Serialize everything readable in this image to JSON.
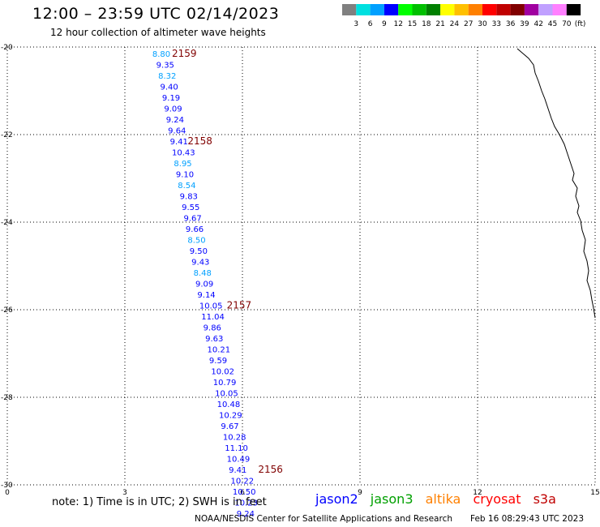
{
  "header": {
    "title": "12:00 – 23:59 UTC 02/14/2023",
    "subtitle": "12 hour collection of altimeter wave heights"
  },
  "legend": {
    "colors": [
      "#808080",
      "#00e0e0",
      "#00a0ff",
      "#0000ff",
      "#00ff00",
      "#00c000",
      "#008000",
      "#ffff00",
      "#ffc000",
      "#ff8000",
      "#ff0000",
      "#c00000",
      "#800000",
      "#a000a0",
      "#c0a0ff",
      "#ff80ff",
      "#000000"
    ],
    "labels": [
      "3",
      "6",
      "9",
      "12",
      "15",
      "18",
      "21",
      "24",
      "27",
      "30",
      "33",
      "36",
      "39",
      "42",
      "45",
      "70"
    ],
    "unit": "(ft)"
  },
  "footer": {
    "note": "note: 1) Time is in UTC; 2) SWH is in feet",
    "satellites": [
      {
        "name": "jason2",
        "color": "#0000ff"
      },
      {
        "name": "jason3",
        "color": "#00a000"
      },
      {
        "name": "altika",
        "color": "#ff8000"
      },
      {
        "name": "cryosat",
        "color": "#ff0000"
      },
      {
        "name": "s3a",
        "color": "#c00000"
      }
    ],
    "credit": "NOAA/NESDIS Center for Satellite Applications and Research",
    "date": "Feb 16 08:29:43 UTC 2023"
  },
  "chart_data": {
    "type": "scatter",
    "xlim": [
      0,
      15
    ],
    "ylim": [
      -30,
      -20
    ],
    "x_ticks": [
      "0",
      "3",
      "6",
      "9",
      "12",
      "15"
    ],
    "y_ticks": [
      "-20",
      "-22",
      "-24",
      "-26",
      "-28",
      "-30"
    ],
    "grid": true,
    "points": [
      {
        "x": 3.7,
        "y": -20.15,
        "label": "8.80",
        "color": "#00a0ff"
      },
      {
        "x": 3.8,
        "y": -20.4,
        "label": "9.35",
        "color": "#0000ff"
      },
      {
        "x": 3.85,
        "y": -20.65,
        "label": "8.32",
        "color": "#00a0ff"
      },
      {
        "x": 3.9,
        "y": -20.9,
        "label": "9.40",
        "color": "#0000ff"
      },
      {
        "x": 3.95,
        "y": -21.15,
        "label": "9.19",
        "color": "#0000ff"
      },
      {
        "x": 4.0,
        "y": -21.4,
        "label": "9.09",
        "color": "#0000ff"
      },
      {
        "x": 4.05,
        "y": -21.65,
        "label": "9.24",
        "color": "#0000ff"
      },
      {
        "x": 4.1,
        "y": -21.9,
        "label": "9.64",
        "color": "#0000ff"
      },
      {
        "x": 4.15,
        "y": -22.15,
        "label": "9.41",
        "color": "#0000ff"
      },
      {
        "x": 4.2,
        "y": -22.4,
        "label": "10.43",
        "color": "#0000ff"
      },
      {
        "x": 4.25,
        "y": -22.65,
        "label": "8.95",
        "color": "#00a0ff"
      },
      {
        "x": 4.3,
        "y": -22.9,
        "label": "9.10",
        "color": "#0000ff"
      },
      {
        "x": 4.35,
        "y": -23.15,
        "label": "8.54",
        "color": "#00a0ff"
      },
      {
        "x": 4.4,
        "y": -23.4,
        "label": "9.83",
        "color": "#0000ff"
      },
      {
        "x": 4.45,
        "y": -23.65,
        "label": "9.55",
        "color": "#0000ff"
      },
      {
        "x": 4.5,
        "y": -23.9,
        "label": "9.67",
        "color": "#0000ff"
      },
      {
        "x": 4.55,
        "y": -24.15,
        "label": "9.66",
        "color": "#0000ff"
      },
      {
        "x": 4.6,
        "y": -24.4,
        "label": "8.50",
        "color": "#00a0ff"
      },
      {
        "x": 4.65,
        "y": -24.65,
        "label": "9.50",
        "color": "#0000ff"
      },
      {
        "x": 4.7,
        "y": -24.9,
        "label": "9.43",
        "color": "#0000ff"
      },
      {
        "x": 4.75,
        "y": -25.15,
        "label": "8.48",
        "color": "#00a0ff"
      },
      {
        "x": 4.8,
        "y": -25.4,
        "label": "9.09",
        "color": "#0000ff"
      },
      {
        "x": 4.85,
        "y": -25.65,
        "label": "9.14",
        "color": "#0000ff"
      },
      {
        "x": 4.9,
        "y": -25.9,
        "label": "10.05",
        "color": "#0000ff"
      },
      {
        "x": 4.95,
        "y": -26.15,
        "label": "11.04",
        "color": "#0000ff"
      },
      {
        "x": 5.0,
        "y": -26.4,
        "label": "9.86",
        "color": "#0000ff"
      },
      {
        "x": 5.05,
        "y": -26.65,
        "label": "9.63",
        "color": "#0000ff"
      },
      {
        "x": 5.1,
        "y": -26.9,
        "label": "10.21",
        "color": "#0000ff"
      },
      {
        "x": 5.15,
        "y": -27.15,
        "label": "9.59",
        "color": "#0000ff"
      },
      {
        "x": 5.2,
        "y": -27.4,
        "label": "10.02",
        "color": "#0000ff"
      },
      {
        "x": 5.25,
        "y": -27.65,
        "label": "10.79",
        "color": "#0000ff"
      },
      {
        "x": 5.3,
        "y": -27.9,
        "label": "10.05",
        "color": "#0000ff"
      },
      {
        "x": 5.35,
        "y": -28.15,
        "label": "10.48",
        "color": "#0000ff"
      },
      {
        "x": 5.4,
        "y": -28.4,
        "label": "10.29",
        "color": "#0000ff"
      },
      {
        "x": 5.45,
        "y": -28.65,
        "label": "9.67",
        "color": "#0000ff"
      },
      {
        "x": 5.5,
        "y": -28.9,
        "label": "10.28",
        "color": "#0000ff"
      },
      {
        "x": 5.55,
        "y": -29.15,
        "label": "11.10",
        "color": "#0000ff"
      },
      {
        "x": 5.6,
        "y": -29.4,
        "label": "10.49",
        "color": "#0000ff"
      },
      {
        "x": 5.65,
        "y": -29.65,
        "label": "9.41",
        "color": "#0000ff"
      },
      {
        "x": 5.7,
        "y": -29.9,
        "label": "10.22",
        "color": "#0000ff"
      },
      {
        "x": 5.75,
        "y": -30.15,
        "label": "10.50",
        "color": "#0000ff"
      },
      {
        "x": 5.8,
        "y": -30.4,
        "label": "10.23",
        "color": "#0000ff"
      },
      {
        "x": 5.85,
        "y": -30.65,
        "label": "9.24",
        "color": "#0000ff"
      }
    ],
    "pass_labels": [
      {
        "x": 4.2,
        "y": -20.15,
        "label": "2159"
      },
      {
        "x": 4.6,
        "y": -22.15,
        "label": "2158"
      },
      {
        "x": 5.6,
        "y": -25.9,
        "label": "2157"
      },
      {
        "x": 6.4,
        "y": -29.65,
        "label": "2156"
      }
    ],
    "pass_label_color": "#800000"
  }
}
